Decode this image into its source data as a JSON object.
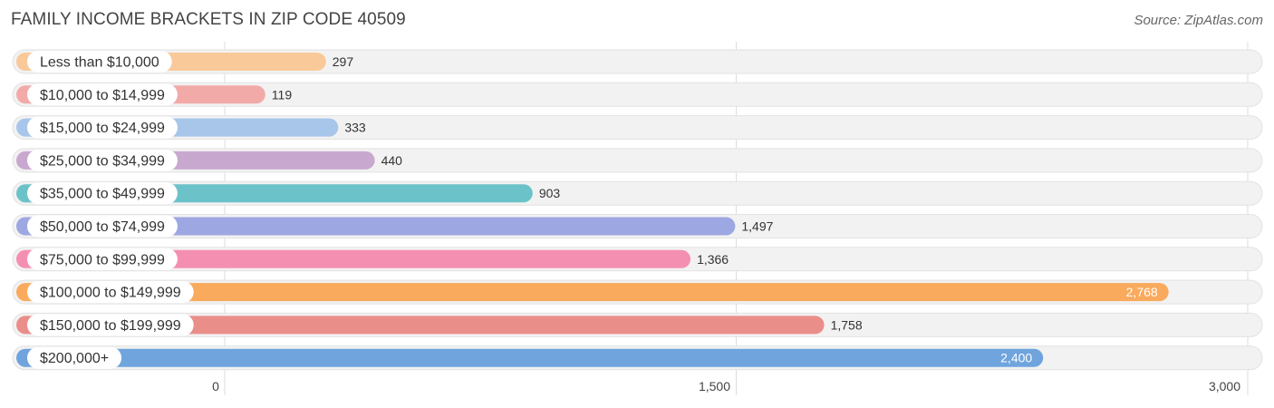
{
  "header": {
    "title": "FAMILY INCOME BRACKETS IN ZIP CODE 40509",
    "source": "Source: ZipAtlas.com"
  },
  "chart_data": {
    "type": "bar",
    "orientation": "horizontal",
    "title": "FAMILY INCOME BRACKETS IN ZIP CODE 40509",
    "categories": [
      "Less than $10,000",
      "$10,000 to $14,999",
      "$15,000 to $24,999",
      "$25,000 to $34,999",
      "$35,000 to $49,999",
      "$50,000 to $74,999",
      "$75,000 to $99,999",
      "$100,000 to $149,999",
      "$150,000 to $199,999",
      "$200,000+"
    ],
    "values": [
      297,
      119,
      333,
      440,
      903,
      1497,
      1366,
      2768,
      1758,
      2400
    ],
    "value_labels": [
      "297",
      "119",
      "333",
      "440",
      "903",
      "1,497",
      "1,366",
      "2,768",
      "1,758",
      "2,400"
    ],
    "colors": [
      "#f9c99a",
      "#f2aaa9",
      "#a8c6ea",
      "#c9a8d0",
      "#6cc2c9",
      "#9da7e2",
      "#f58fb1",
      "#f9aa5c",
      "#ea8e8a",
      "#6fa4dd"
    ],
    "xlim": [
      0,
      3000
    ],
    "xticks": [
      0,
      1500,
      3000
    ],
    "xtick_labels": [
      "0",
      "1,500",
      "3,000"
    ],
    "grid": true,
    "legend": "none"
  }
}
